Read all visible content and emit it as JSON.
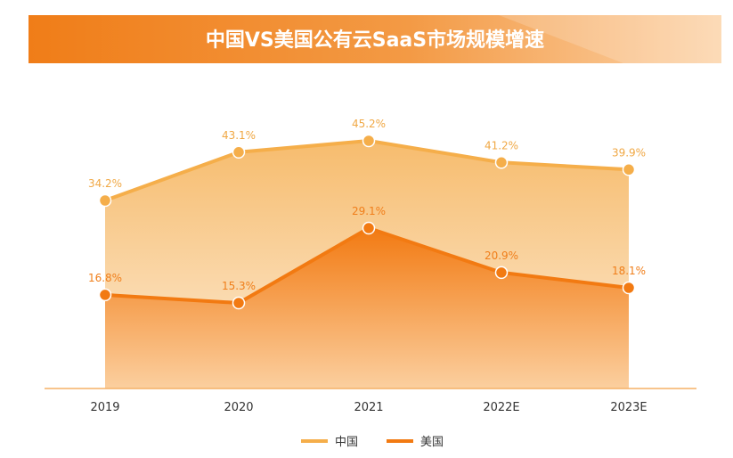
{
  "title": "中国VS美国公有云SaaS市场规模增速",
  "colors": {
    "china": "#F5AE4A",
    "china_fill_top": "#F6B865",
    "china_fill_bottom": "#FCE8CE",
    "usa": "#F27A12",
    "usa_fill_top": "#F27A12",
    "usa_fill_bottom": "#FBCF9F",
    "banner_left": "#F07D18",
    "banner_right": "#FCD3A8",
    "axis": "#F5B066"
  },
  "chart_data": {
    "type": "area",
    "title": "中国VS美国公有云SaaS市场规模增速",
    "categories": [
      "2019",
      "2020",
      "2021",
      "2022E",
      "2023E"
    ],
    "series": [
      {
        "name": "中国",
        "values": [
          34.2,
          43.1,
          45.2,
          41.2,
          39.9
        ],
        "labels": [
          "34.2%",
          "43.1%",
          "45.2%",
          "41.2%",
          "39.9%"
        ]
      },
      {
        "name": "美国",
        "values": [
          16.8,
          15.3,
          29.1,
          20.9,
          18.1
        ],
        "labels": [
          "16.8%",
          "15.3%",
          "29.1%",
          "20.9%",
          "18.1%"
        ]
      }
    ],
    "ylim": [
      0,
      50
    ],
    "grid": false,
    "legend": "bottom-center"
  }
}
